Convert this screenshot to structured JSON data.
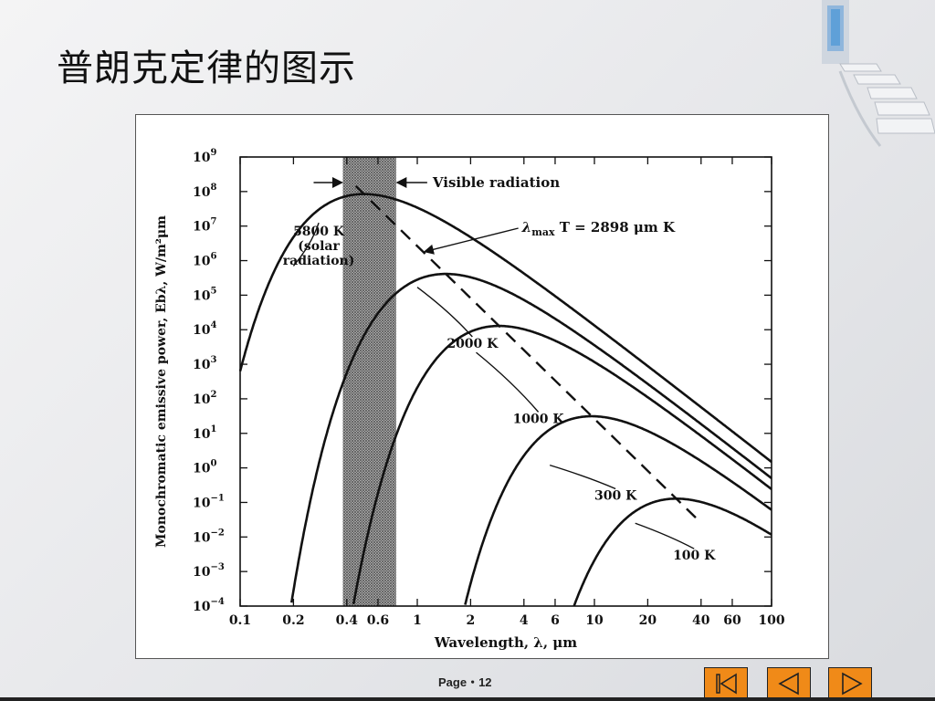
{
  "slide": {
    "title": "普朗克定律的图示",
    "page_label": "Page・12"
  },
  "navigation": {
    "first_icon": "first-slide-icon",
    "prev_icon": "previous-slide-icon",
    "next_icon": "next-slide-icon",
    "accent_color": "#f08a18"
  },
  "chart_data": {
    "type": "line",
    "xlabel": "Wavelength, λ, μm",
    "ylabel": "Monochromatic emissive power, Ebλ, W/m²μm",
    "x_scale": "log",
    "y_scale": "log",
    "xlim": [
      0.1,
      100
    ],
    "ylim": [
      0.0001,
      1000000000
    ],
    "x_ticks": [
      "0.1",
      "0.2",
      "0.4",
      "0.6",
      "1",
      "2",
      "4",
      "6",
      "10",
      "20",
      "40",
      "60",
      "100"
    ],
    "y_ticks": [
      {
        "base": "10",
        "exp": "9"
      },
      {
        "base": "10",
        "exp": "8"
      },
      {
        "base": "10",
        "exp": "7"
      },
      {
        "base": "10",
        "exp": "6"
      },
      {
        "base": "10",
        "exp": "5"
      },
      {
        "base": "10",
        "exp": "4"
      },
      {
        "base": "10",
        "exp": "3"
      },
      {
        "base": "10",
        "exp": "2"
      },
      {
        "base": "10",
        "exp": "1"
      },
      {
        "base": "10",
        "exp": "0"
      },
      {
        "base": "10",
        "exp": "−1"
      },
      {
        "base": "10",
        "exp": "−2"
      },
      {
        "base": "10",
        "exp": "−3"
      },
      {
        "base": "10",
        "exp": "−4"
      }
    ],
    "visible_band": {
      "xmin": 0.38,
      "xmax": 0.76,
      "label": "Visible radiation"
    },
    "max_line_label": {
      "prefix": "λ",
      "sub": "max",
      "text": " T = 2898 μm K"
    },
    "series": [
      {
        "name": "5800 K",
        "label_lines": [
          "5800 K",
          "(solar",
          "radiation)"
        ],
        "label_at": [
          0.19,
          2000000
        ],
        "label_target": [
          0.2,
          700000
        ],
        "temperature": 5800
      },
      {
        "name": "2000 K",
        "label_lines": [
          "2000 K"
        ],
        "label_at": [
          1.4,
          3000
        ],
        "label_target": [
          1.0,
          170000
        ],
        "temperature": 2000
      },
      {
        "name": "1000 K",
        "label_lines": [
          "1000 K"
        ],
        "label_at": [
          3.3,
          20
        ],
        "label_target": [
          2.15,
          2200
        ],
        "temperature": 1000
      },
      {
        "name": "300 K",
        "label_lines": [
          "300 K"
        ],
        "label_at": [
          9,
          0.12
        ],
        "label_target": [
          5.6,
          1.2
        ],
        "temperature": 300
      },
      {
        "name": "100 K",
        "label_lines": [
          "100 K"
        ],
        "label_at": [
          25,
          0.0022
        ],
        "label_target": [
          17,
          0.025
        ],
        "temperature": 100
      }
    ]
  }
}
